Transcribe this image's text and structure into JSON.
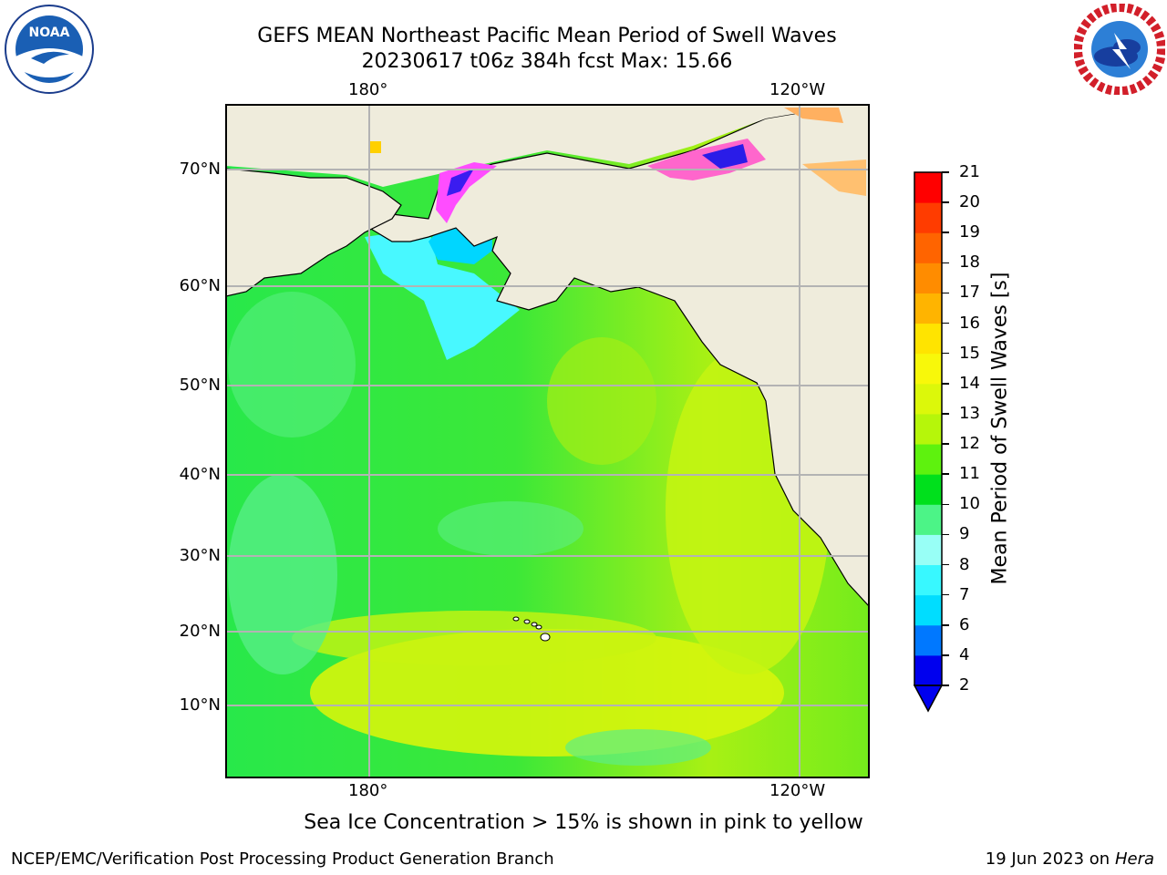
{
  "header": {
    "title": "GEFS MEAN Northeast Pacific Mean Period of Swell Waves",
    "subtitle": "20230617 t06z 384h fcst   Max: 15.66"
  },
  "logos": {
    "left": {
      "icon": "noaa-logo",
      "name": "NOAA",
      "ring_text": "NATIONAL OCEANIC AND ATMOSPHERIC ADMINISTRATION · U.S. DEPARTMENT OF COMMERCE"
    },
    "right": {
      "icon": "nws-logo",
      "ring_text": "NATIONAL WEATHER SERVICE"
    }
  },
  "map": {
    "lon_labels_top": [
      "180°",
      "120°W"
    ],
    "lon_labels_bottom": [
      "180°",
      "120°W"
    ],
    "lat_labels": [
      "70°N",
      "60°N",
      "50°N",
      "40°N",
      "30°N",
      "20°N",
      "10°N"
    ],
    "land_color": "#efecdc",
    "grid_color": "#b3b3b3"
  },
  "colorbar": {
    "title": "Mean Period of Swell Waves [s]",
    "ticks": [
      "2",
      "4",
      "6",
      "7",
      "8",
      "9",
      "10",
      "11",
      "12",
      "13",
      "14",
      "15",
      "16",
      "17",
      "18",
      "19",
      "20",
      "21"
    ],
    "colors": [
      "#0000ee",
      "#0078ff",
      "#00ddff",
      "#38f8ff",
      "#98fff6",
      "#4cf487",
      "#00e01c",
      "#5ef20e",
      "#b6f60a",
      "#dcf80a",
      "#f8f80a",
      "#ffe400",
      "#ffb400",
      "#ff8c00",
      "#ff6400",
      "#ff3c00",
      "#ff0000"
    ]
  },
  "caption": "Sea Ice Concentration > 15% is shown in pink to yellow",
  "footer": {
    "left": "NCEP/EMC/Verification Post Processing Product Generation Branch",
    "date": "19 Jun 2023 on",
    "host": "Hera"
  }
}
